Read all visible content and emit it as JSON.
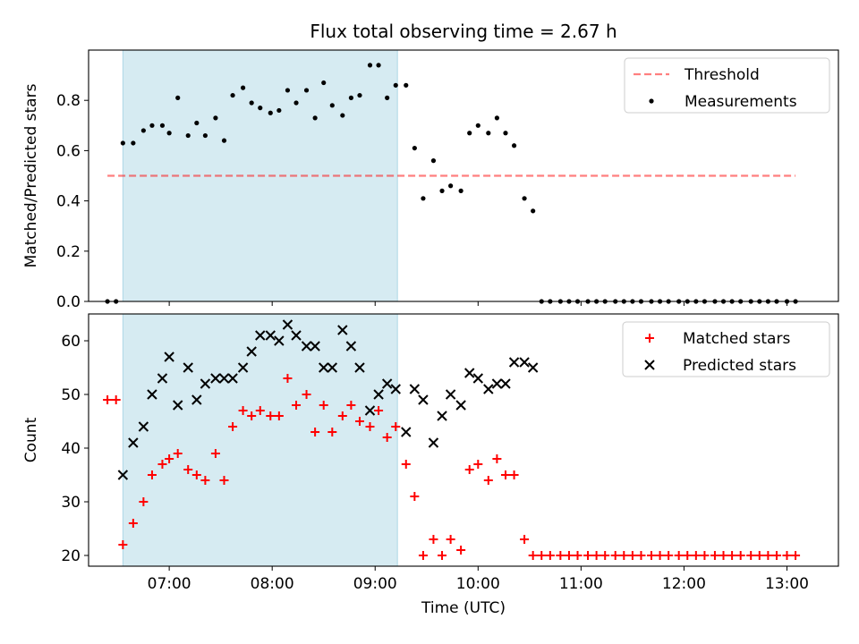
{
  "title": "Flux total observing time = 2.67 h",
  "colors": {
    "band": "#add8e6",
    "threshold": "#ff0000",
    "measurement": "#000000",
    "matched": "#ff0000",
    "predicted": "#000000"
  },
  "chart_data": [
    {
      "type": "scatter",
      "ylabel": "Matched/Predicted stars",
      "ylim": [
        0,
        1.0
      ],
      "yticks": [
        0.0,
        0.2,
        0.4,
        0.6,
        0.8
      ],
      "ytick_labels": [
        "0.0",
        "0.2",
        "0.4",
        "0.6",
        "0.8"
      ],
      "xlim": [
        "06:13",
        "13:30"
      ],
      "shaded_interval": [
        "06:33",
        "09:13"
      ],
      "legend": {
        "placement": "top-right",
        "entries": [
          "Threshold",
          "Measurements"
        ]
      },
      "threshold": {
        "name": "Threshold",
        "value": 0.5,
        "x_range": [
          "06:24",
          "13:05"
        ],
        "style": "dashed"
      },
      "series": [
        {
          "name": "Measurements",
          "points": [
            [
              "06:24",
              0.0
            ],
            [
              "06:29",
              0.0
            ],
            [
              "06:33",
              0.63
            ],
            [
              "06:39",
              0.63
            ],
            [
              "06:45",
              0.68
            ],
            [
              "06:50",
              0.7
            ],
            [
              "06:56",
              0.7
            ],
            [
              "07:00",
              0.67
            ],
            [
              "07:05",
              0.81
            ],
            [
              "07:11",
              0.66
            ],
            [
              "07:16",
              0.71
            ],
            [
              "07:21",
              0.66
            ],
            [
              "07:27",
              0.73
            ],
            [
              "07:32",
              0.64
            ],
            [
              "07:37",
              0.82
            ],
            [
              "07:43",
              0.85
            ],
            [
              "07:48",
              0.79
            ],
            [
              "07:53",
              0.77
            ],
            [
              "07:59",
              0.75
            ],
            [
              "08:04",
              0.76
            ],
            [
              "08:09",
              0.84
            ],
            [
              "08:14",
              0.79
            ],
            [
              "08:20",
              0.84
            ],
            [
              "08:25",
              0.73
            ],
            [
              "08:30",
              0.87
            ],
            [
              "08:35",
              0.78
            ],
            [
              "08:41",
              0.74
            ],
            [
              "08:46",
              0.81
            ],
            [
              "08:51",
              0.82
            ],
            [
              "08:57",
              0.94
            ],
            [
              "09:02",
              0.94
            ],
            [
              "09:07",
              0.81
            ],
            [
              "09:12",
              0.86
            ],
            [
              "09:18",
              0.86
            ],
            [
              "09:23",
              0.61
            ],
            [
              "09:28",
              0.41
            ],
            [
              "09:34",
              0.56
            ],
            [
              "09:39",
              0.44
            ],
            [
              "09:44",
              0.46
            ],
            [
              "09:50",
              0.44
            ],
            [
              "09:55",
              0.67
            ],
            [
              "10:00",
              0.7
            ],
            [
              "10:06",
              0.67
            ],
            [
              "10:11",
              0.73
            ],
            [
              "10:16",
              0.67
            ],
            [
              "10:21",
              0.62
            ],
            [
              "10:27",
              0.41
            ],
            [
              "10:32",
              0.36
            ],
            [
              "10:37",
              0.0
            ],
            [
              "10:42",
              0.0
            ],
            [
              "10:48",
              0.0
            ],
            [
              "10:53",
              0.0
            ],
            [
              "10:58",
              0.0
            ],
            [
              "11:04",
              0.0
            ],
            [
              "11:09",
              0.0
            ],
            [
              "11:14",
              0.0
            ],
            [
              "11:20",
              0.0
            ],
            [
              "11:25",
              0.0
            ],
            [
              "11:30",
              0.0
            ],
            [
              "11:35",
              0.0
            ],
            [
              "11:41",
              0.0
            ],
            [
              "11:46",
              0.0
            ],
            [
              "11:51",
              0.0
            ],
            [
              "11:57",
              0.0
            ],
            [
              "12:02",
              0.0
            ],
            [
              "12:07",
              0.0
            ],
            [
              "12:12",
              0.0
            ],
            [
              "12:18",
              0.0
            ],
            [
              "12:23",
              0.0
            ],
            [
              "12:28",
              0.0
            ],
            [
              "12:33",
              0.0
            ],
            [
              "12:39",
              0.0
            ],
            [
              "12:44",
              0.0
            ],
            [
              "12:49",
              0.0
            ],
            [
              "12:54",
              0.0
            ],
            [
              "13:00",
              0.0
            ],
            [
              "13:05",
              0.0
            ]
          ]
        }
      ]
    },
    {
      "type": "scatter",
      "xlabel": "Time (UTC)",
      "ylabel": "Count",
      "ylim": [
        18,
        65
      ],
      "yticks": [
        20,
        30,
        40,
        50,
        60
      ],
      "ytick_labels": [
        "20",
        "30",
        "40",
        "50",
        "60"
      ],
      "xlim": [
        "06:13",
        "13:30"
      ],
      "xticks": [
        "07:00",
        "08:00",
        "09:00",
        "10:00",
        "11:00",
        "12:00",
        "13:00"
      ],
      "shaded_interval": [
        "06:33",
        "09:13"
      ],
      "legend": {
        "placement": "top-right",
        "entries": [
          "Matched stars",
          "Predicted stars"
        ]
      },
      "series": [
        {
          "name": "Matched stars",
          "marker": "plus",
          "points": [
            [
              "06:24",
              49
            ],
            [
              "06:29",
              49
            ],
            [
              "06:33",
              22
            ],
            [
              "06:39",
              26
            ],
            [
              "06:45",
              30
            ],
            [
              "06:50",
              35
            ],
            [
              "06:56",
              37
            ],
            [
              "07:00",
              38
            ],
            [
              "07:05",
              39
            ],
            [
              "07:11",
              36
            ],
            [
              "07:16",
              35
            ],
            [
              "07:21",
              34
            ],
            [
              "07:27",
              39
            ],
            [
              "07:32",
              34
            ],
            [
              "07:37",
              44
            ],
            [
              "07:43",
              47
            ],
            [
              "07:48",
              46
            ],
            [
              "07:53",
              47
            ],
            [
              "07:59",
              46
            ],
            [
              "08:04",
              46
            ],
            [
              "08:09",
              53
            ],
            [
              "08:14",
              48
            ],
            [
              "08:20",
              50
            ],
            [
              "08:25",
              43
            ],
            [
              "08:30",
              48
            ],
            [
              "08:35",
              43
            ],
            [
              "08:41",
              46
            ],
            [
              "08:46",
              48
            ],
            [
              "08:51",
              45
            ],
            [
              "08:57",
              44
            ],
            [
              "09:02",
              47
            ],
            [
              "09:07",
              42
            ],
            [
              "09:12",
              44
            ],
            [
              "09:18",
              37
            ],
            [
              "09:23",
              31
            ],
            [
              "09:28",
              20
            ],
            [
              "09:34",
              23
            ],
            [
              "09:39",
              20
            ],
            [
              "09:44",
              23
            ],
            [
              "09:50",
              21
            ],
            [
              "09:55",
              36
            ],
            [
              "10:00",
              37
            ],
            [
              "10:06",
              34
            ],
            [
              "10:11",
              38
            ],
            [
              "10:16",
              35
            ],
            [
              "10:21",
              35
            ],
            [
              "10:27",
              23
            ],
            [
              "10:32",
              20
            ],
            [
              "10:37",
              20
            ],
            [
              "10:42",
              20
            ],
            [
              "10:48",
              20
            ],
            [
              "10:53",
              20
            ],
            [
              "10:58",
              20
            ],
            [
              "11:04",
              20
            ],
            [
              "11:09",
              20
            ],
            [
              "11:14",
              20
            ],
            [
              "11:20",
              20
            ],
            [
              "11:25",
              20
            ],
            [
              "11:30",
              20
            ],
            [
              "11:35",
              20
            ],
            [
              "11:41",
              20
            ],
            [
              "11:46",
              20
            ],
            [
              "11:51",
              20
            ],
            [
              "11:57",
              20
            ],
            [
              "12:02",
              20
            ],
            [
              "12:07",
              20
            ],
            [
              "12:12",
              20
            ],
            [
              "12:18",
              20
            ],
            [
              "12:23",
              20
            ],
            [
              "12:28",
              20
            ],
            [
              "12:33",
              20
            ],
            [
              "12:39",
              20
            ],
            [
              "12:44",
              20
            ],
            [
              "12:49",
              20
            ],
            [
              "12:54",
              20
            ],
            [
              "13:00",
              20
            ],
            [
              "13:05",
              20
            ]
          ]
        },
        {
          "name": "Predicted stars",
          "marker": "x",
          "points": [
            [
              "06:33",
              35
            ],
            [
              "06:39",
              41
            ],
            [
              "06:45",
              44
            ],
            [
              "06:50",
              50
            ],
            [
              "06:56",
              53
            ],
            [
              "07:00",
              57
            ],
            [
              "07:05",
              48
            ],
            [
              "07:11",
              55
            ],
            [
              "07:16",
              49
            ],
            [
              "07:21",
              52
            ],
            [
              "07:27",
              53
            ],
            [
              "07:32",
              53
            ],
            [
              "07:37",
              53
            ],
            [
              "07:43",
              55
            ],
            [
              "07:48",
              58
            ],
            [
              "07:53",
              61
            ],
            [
              "07:59",
              61
            ],
            [
              "08:04",
              60
            ],
            [
              "08:09",
              63
            ],
            [
              "08:14",
              61
            ],
            [
              "08:20",
              59
            ],
            [
              "08:25",
              59
            ],
            [
              "08:30",
              55
            ],
            [
              "08:35",
              55
            ],
            [
              "08:41",
              62
            ],
            [
              "08:46",
              59
            ],
            [
              "08:51",
              55
            ],
            [
              "08:57",
              47
            ],
            [
              "09:02",
              50
            ],
            [
              "09:07",
              52
            ],
            [
              "09:12",
              51
            ],
            [
              "09:18",
              43
            ],
            [
              "09:23",
              51
            ],
            [
              "09:28",
              49
            ],
            [
              "09:34",
              41
            ],
            [
              "09:39",
              46
            ],
            [
              "09:44",
              50
            ],
            [
              "09:50",
              48
            ],
            [
              "09:55",
              54
            ],
            [
              "10:00",
              53
            ],
            [
              "10:06",
              51
            ],
            [
              "10:11",
              52
            ],
            [
              "10:16",
              52
            ],
            [
              "10:21",
              56
            ],
            [
              "10:27",
              56
            ],
            [
              "10:32",
              55
            ]
          ]
        }
      ]
    }
  ]
}
